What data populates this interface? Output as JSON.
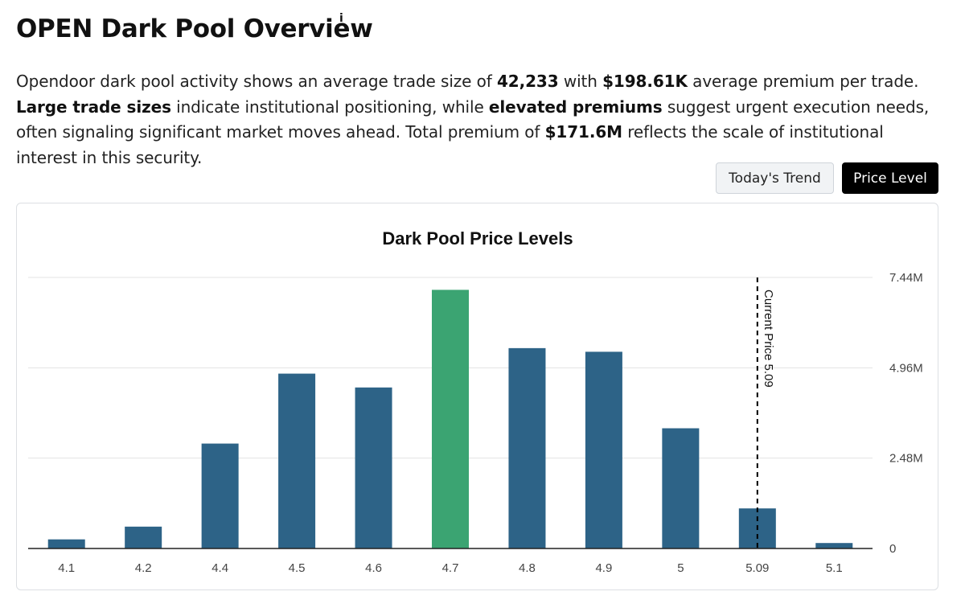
{
  "header": {
    "title": "OPEN Dark Pool Overview",
    "info_glyph": "i"
  },
  "description": {
    "p1": "Opendoor dark pool activity shows an average trade size of ",
    "avg_size": "42,233",
    "p2": " with ",
    "avg_premium": "$198.61K",
    "p3": " average premium per trade. ",
    "large": "Large trade sizes",
    "p4": " indicate institutional positioning, while ",
    "elevated": "elevated premiums",
    "p5": " suggest urgent execution needs, often signaling significant market moves ahead. Total premium of ",
    "total": "$171.6M",
    "p6": " reflects the scale of institutional interest in this security."
  },
  "toggles": {
    "trend_label": "Today's Trend",
    "price_label": "Price Level",
    "active": "Price Level"
  },
  "chart_data": {
    "type": "bar",
    "title": "Dark Pool Price Levels",
    "categories": [
      "4.1",
      "4.2",
      "4.4",
      "4.5",
      "4.6",
      "4.7",
      "4.8",
      "4.9",
      "5",
      "5.09",
      "5.1"
    ],
    "values": [
      0.25,
      0.6,
      2.88,
      4.8,
      4.42,
      7.1,
      5.5,
      5.4,
      3.3,
      1.1,
      0.15
    ],
    "highlight_category": "4.7",
    "y_ticks": [
      0,
      2.48,
      4.96,
      7.44
    ],
    "y_tick_labels": [
      "0",
      "2.48M",
      "4.96M",
      "7.44M"
    ],
    "ylim": [
      0,
      7.44
    ],
    "y_axis_side": "right",
    "grid": true,
    "current_price_marker": {
      "category": "5.09",
      "label": "Current Price 5.09"
    },
    "colors": {
      "bar": "#2d6387",
      "highlight": "#3ba472",
      "grid": "#e3e3e3",
      "marker": "#000000"
    }
  }
}
